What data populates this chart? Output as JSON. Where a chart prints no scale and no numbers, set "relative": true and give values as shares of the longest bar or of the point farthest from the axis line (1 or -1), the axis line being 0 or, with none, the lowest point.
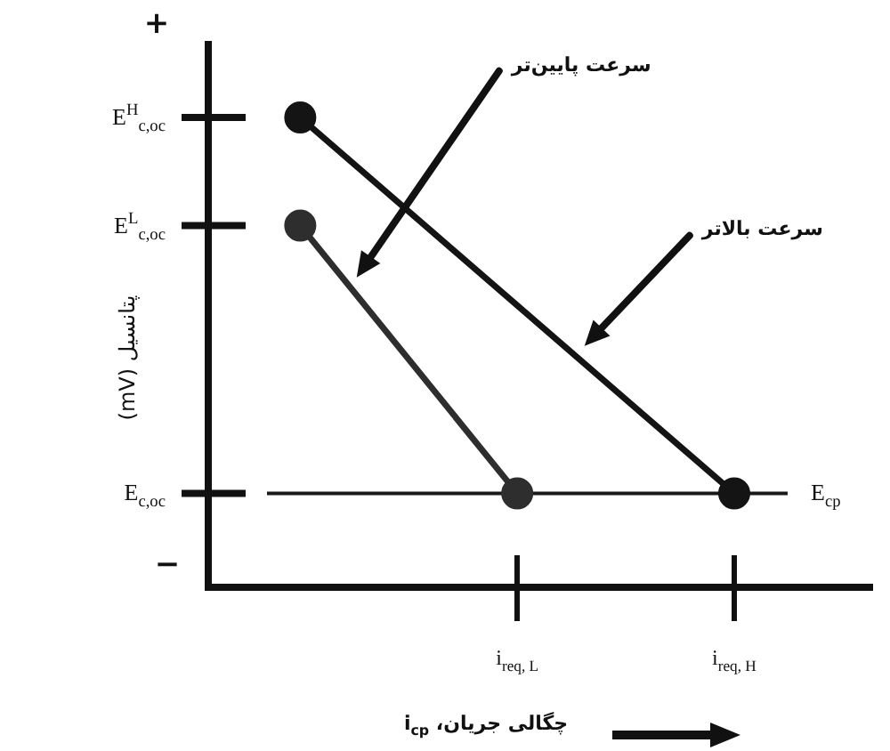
{
  "chart_data": {
    "type": "line",
    "xlabel": "چگالی جریان، i$_{cp}$",
    "ylabel": "پتانسیل (mV)",
    "relative": true,
    "categories": [
      null,
      "i$_{req, L}$",
      "i$_{req, H}$"
    ],
    "series": [
      {
        "color": "#141414",
        "values": [
          1,
          null,
          0.2
        ]
      },
      {
        "color": "#2e2e2e",
        "values": [
          0.77,
          0.2,
          null
        ]
      }
    ],
    "ref_lines": [
      {
        "axis": "y",
        "value": 0.2,
        "label": "E$_{cp}$",
        "color": "#1a1a1a"
      }
    ],
    "annotations": [
      "+",
      "−",
      "E$^{H}$$_{c,oc}$",
      "E$^{L}$$_{c,oc}$",
      "E$_{c,oc}$",
      "سرعت پایین‌تر",
      "سرعت بالاتر"
    ],
    "marker": "circle",
    "line_style": "solid"
  }
}
